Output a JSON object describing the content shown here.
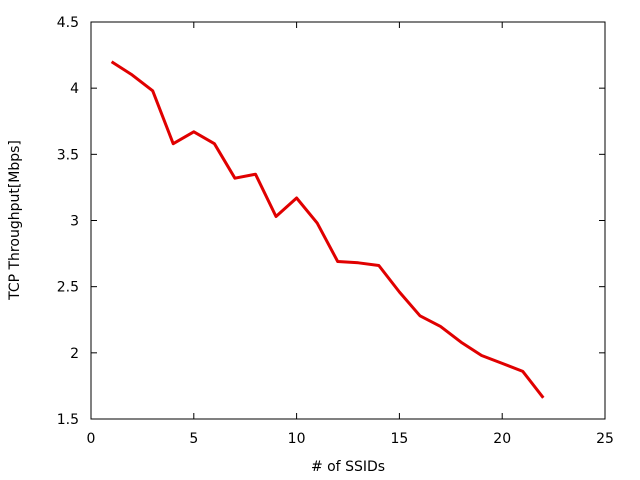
{
  "chart_data": {
    "type": "line",
    "title": "",
    "xlabel": "# of SSIDs",
    "ylabel": "TCP Throughput[Mbps]",
    "xlim": [
      0,
      25
    ],
    "ylim": [
      1.5,
      4.5
    ],
    "xticks": [
      0,
      5,
      10,
      15,
      20,
      25
    ],
    "yticks": [
      1.5,
      2,
      2.5,
      3,
      3.5,
      4,
      4.5
    ],
    "xtick_labels": [
      "0",
      "5",
      "10",
      "15",
      "20",
      "25"
    ],
    "ytick_labels": [
      "1.5",
      "2",
      "2.5",
      "3",
      "3.5",
      "4",
      "4.5"
    ],
    "grid": false,
    "series": [
      {
        "color": "#e00000",
        "x": [
          1,
          2,
          3,
          4,
          5,
          6,
          7,
          8,
          9,
          10,
          11,
          12,
          13,
          14,
          15,
          16,
          17,
          18,
          19,
          20,
          21,
          22
        ],
        "y": [
          4.2,
          4.1,
          3.98,
          3.58,
          3.67,
          3.58,
          3.32,
          3.35,
          3.03,
          3.17,
          2.98,
          2.69,
          2.68,
          2.66,
          2.46,
          2.28,
          2.2,
          2.08,
          1.98,
          1.92,
          1.86,
          1.66
        ]
      }
    ]
  }
}
